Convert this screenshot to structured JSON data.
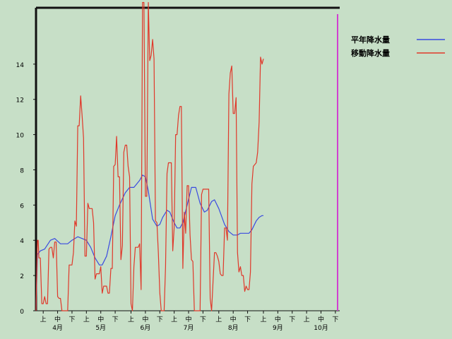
{
  "chart_data": {
    "type": "line",
    "title": "",
    "xlabel": "",
    "ylabel": "",
    "ylim": [
      0,
      17.2
    ],
    "y_ticks": [
      0,
      2,
      4,
      6,
      8,
      10,
      12,
      14
    ],
    "x_range": [
      0,
      211
    ],
    "x_sub_ticks": [
      {
        "label": "上",
        "x": 5
      },
      {
        "label": "中",
        "x": 15
      },
      {
        "label": "下",
        "x": 25
      },
      {
        "label": "上",
        "x": 35
      },
      {
        "label": "中",
        "x": 45
      },
      {
        "label": "下",
        "x": 55
      },
      {
        "label": "上",
        "x": 66
      },
      {
        "label": "中",
        "x": 76
      },
      {
        "label": "下",
        "x": 86
      },
      {
        "label": "上",
        "x": 96
      },
      {
        "label": "中",
        "x": 106
      },
      {
        "label": "下",
        "x": 116
      },
      {
        "label": "上",
        "x": 127
      },
      {
        "label": "中",
        "x": 137
      },
      {
        "label": "下",
        "x": 147
      },
      {
        "label": "上",
        "x": 158
      },
      {
        "label": "中",
        "x": 168
      },
      {
        "label": "下",
        "x": 178
      },
      {
        "label": "上",
        "x": 188
      },
      {
        "label": "中",
        "x": 198
      },
      {
        "label": "下",
        "x": 208
      }
    ],
    "x_month_labels": [
      {
        "label": "4月",
        "x": 15
      },
      {
        "label": "5月",
        "x": 45
      },
      {
        "label": "6月",
        "x": 76
      },
      {
        "label": "7月",
        "x": 106
      },
      {
        "label": "8月",
        "x": 137
      },
      {
        "label": "9月",
        "x": 168
      },
      {
        "label": "10月",
        "x": 198
      }
    ],
    "legend_position": "top-right",
    "series": [
      {
        "name": "平年降水量",
        "color": "#3a4be0",
        "points": [
          [
            0,
            0
          ],
          [
            1,
            3.2
          ],
          [
            3,
            3.4
          ],
          [
            6,
            3.5
          ],
          [
            10,
            4.0
          ],
          [
            13,
            4.1
          ],
          [
            17,
            3.8
          ],
          [
            22,
            3.8
          ],
          [
            25,
            4.0
          ],
          [
            29,
            4.2
          ],
          [
            32,
            4.1
          ],
          [
            35,
            4.0
          ],
          [
            38,
            3.6
          ],
          [
            41,
            3.0
          ],
          [
            44,
            2.6
          ],
          [
            46,
            2.6
          ],
          [
            49,
            3.1
          ],
          [
            52,
            4.2
          ],
          [
            55,
            5.4
          ],
          [
            58,
            6.0
          ],
          [
            62,
            6.7
          ],
          [
            65,
            7.0
          ],
          [
            68,
            7.0
          ],
          [
            72,
            7.4
          ],
          [
            74,
            7.7
          ],
          [
            76,
            7.6
          ],
          [
            78,
            6.8
          ],
          [
            81,
            5.2
          ],
          [
            84,
            4.8
          ],
          [
            86,
            4.9
          ],
          [
            88,
            5.3
          ],
          [
            91,
            5.7
          ],
          [
            93,
            5.6
          ],
          [
            96,
            5.0
          ],
          [
            98,
            4.7
          ],
          [
            100,
            4.7
          ],
          [
            102,
            5.0
          ],
          [
            105,
            6.0
          ],
          [
            108,
            7.0
          ],
          [
            111,
            7.0
          ],
          [
            114,
            6.1
          ],
          [
            117,
            5.6
          ],
          [
            119,
            5.7
          ],
          [
            122,
            6.2
          ],
          [
            124,
            6.3
          ],
          [
            127,
            5.8
          ],
          [
            131,
            4.9
          ],
          [
            134,
            4.5
          ],
          [
            137,
            4.3
          ],
          [
            140,
            4.3
          ],
          [
            142,
            4.4
          ],
          [
            148,
            4.4
          ],
          [
            150,
            4.6
          ],
          [
            153,
            5.1
          ],
          [
            155,
            5.3
          ],
          [
            157,
            5.4
          ],
          [
            158,
            5.4
          ]
        ]
      },
      {
        "name": "移動降水量",
        "color": "#e0382a",
        "points": [
          [
            0,
            0
          ],
          [
            1,
            4.0
          ],
          [
            1.5,
            4.0
          ],
          [
            2,
            3.0
          ],
          [
            3,
            3.0
          ],
          [
            4,
            0.4
          ],
          [
            5,
            0.4
          ],
          [
            6,
            0.8
          ],
          [
            7,
            0.4
          ],
          [
            8,
            0.4
          ],
          [
            9,
            3.5
          ],
          [
            10,
            3.6
          ],
          [
            11,
            3.6
          ],
          [
            12,
            3.0
          ],
          [
            13,
            3.9
          ],
          [
            14,
            3.9
          ],
          [
            15,
            0.8
          ],
          [
            16,
            0.7
          ],
          [
            17,
            0.7
          ],
          [
            18,
            0
          ],
          [
            22,
            0
          ],
          [
            23,
            2.6
          ],
          [
            25,
            2.6
          ],
          [
            26,
            3.3
          ],
          [
            27,
            5.1
          ],
          [
            28,
            4.8
          ],
          [
            29,
            10.5
          ],
          [
            30,
            10.5
          ],
          [
            31,
            12.2
          ],
          [
            32,
            11.1
          ],
          [
            33,
            9.8
          ],
          [
            34,
            3.1
          ],
          [
            35,
            3.1
          ],
          [
            36,
            6.1
          ],
          [
            37,
            5.8
          ],
          [
            39,
            5.8
          ],
          [
            40,
            5.0
          ],
          [
            41,
            1.8
          ],
          [
            42,
            2.1
          ],
          [
            44,
            2.1
          ],
          [
            45,
            2.5
          ],
          [
            46,
            1.0
          ],
          [
            47,
            1.4
          ],
          [
            49,
            1.4
          ],
          [
            50,
            1.0
          ],
          [
            51,
            1.0
          ],
          [
            52,
            2.4
          ],
          [
            53,
            2.4
          ],
          [
            54,
            8.2
          ],
          [
            55,
            8.3
          ],
          [
            56,
            9.9
          ],
          [
            57,
            7.6
          ],
          [
            58,
            7.6
          ],
          [
            59,
            2.9
          ],
          [
            60,
            3.7
          ],
          [
            61,
            9.0
          ],
          [
            62,
            9.4
          ],
          [
            63,
            9.4
          ],
          [
            64,
            8.2
          ],
          [
            65,
            7.6
          ],
          [
            66,
            0.4
          ],
          [
            67,
            0
          ],
          [
            68,
            2.5
          ],
          [
            69,
            3.6
          ],
          [
            71,
            3.6
          ],
          [
            72,
            3.8
          ],
          [
            73,
            1.2
          ],
          [
            74,
            17.5
          ],
          [
            75,
            17.5
          ],
          [
            76,
            6.5
          ],
          [
            77,
            6.5
          ],
          [
            78,
            17.5
          ],
          [
            79,
            14.2
          ],
          [
            80,
            14.5
          ],
          [
            81,
            15.4
          ],
          [
            82,
            14.3
          ],
          [
            83,
            5.1
          ],
          [
            84,
            5.0
          ],
          [
            85,
            3.3
          ],
          [
            86,
            1.0
          ],
          [
            87,
            0
          ],
          [
            89,
            0
          ],
          [
            90,
            2.5
          ],
          [
            91,
            7.8
          ],
          [
            92,
            8.4
          ],
          [
            94,
            8.4
          ],
          [
            95,
            3.4
          ],
          [
            96,
            4.7
          ],
          [
            97,
            10.0
          ],
          [
            98,
            10.0
          ],
          [
            99,
            11.1
          ],
          [
            100,
            11.6
          ],
          [
            101,
            11.6
          ],
          [
            102,
            2.4
          ],
          [
            103,
            5.6
          ],
          [
            104,
            4.4
          ],
          [
            105,
            7.1
          ],
          [
            106,
            7.1
          ],
          [
            107,
            4.3
          ],
          [
            108,
            2.9
          ],
          [
            109,
            2.8
          ],
          [
            110,
            0
          ],
          [
            114,
            0
          ],
          [
            115,
            6.6
          ],
          [
            116,
            6.9
          ],
          [
            120,
            6.9
          ],
          [
            121,
            0.7
          ],
          [
            122,
            0
          ],
          [
            124,
            3.3
          ],
          [
            125,
            3.3
          ],
          [
            126,
            3.1
          ],
          [
            127,
            2.8
          ],
          [
            128,
            2.1
          ],
          [
            129,
            2.0
          ],
          [
            130,
            2.0
          ],
          [
            131,
            4.7
          ],
          [
            132,
            4.7
          ],
          [
            133,
            4.0
          ],
          [
            134,
            12.3
          ],
          [
            135,
            13.5
          ],
          [
            136,
            13.9
          ],
          [
            137,
            11.2
          ],
          [
            138,
            11.2
          ],
          [
            139,
            12.1
          ],
          [
            140,
            3.3
          ],
          [
            141,
            2.2
          ],
          [
            142,
            2.5
          ],
          [
            143,
            2.0
          ],
          [
            144,
            2.0
          ],
          [
            145,
            1.1
          ],
          [
            146,
            1.4
          ],
          [
            147,
            1.2
          ],
          [
            148,
            1.2
          ],
          [
            149,
            2.2
          ],
          [
            150,
            7.2
          ],
          [
            151,
            8.2
          ],
          [
            152,
            8.3
          ],
          [
            153,
            8.4
          ],
          [
            154,
            9.0
          ],
          [
            155,
            10.7
          ],
          [
            156,
            14.4
          ],
          [
            157,
            14.0
          ],
          [
            158,
            14.3
          ]
        ]
      }
    ]
  }
}
